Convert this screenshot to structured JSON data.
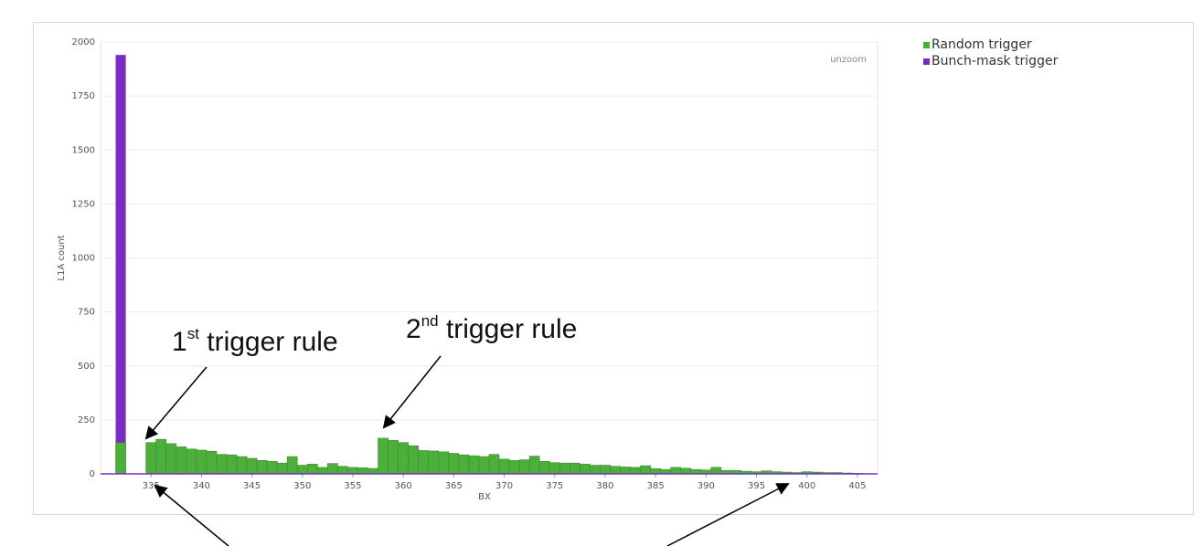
{
  "chart_data": {
    "type": "bar",
    "xlabel": "BX",
    "ylabel": "L1A count",
    "ylim": [
      0,
      2000
    ],
    "xlim": [
      330,
      407
    ],
    "yticks": [
      0,
      250,
      500,
      750,
      1000,
      1250,
      1500,
      1750,
      2000
    ],
    "xticks": [
      335,
      340,
      345,
      350,
      355,
      360,
      365,
      370,
      375,
      380,
      385,
      390,
      395,
      400,
      405
    ],
    "grid": true,
    "legend_position": "outside-top-right",
    "colors": {
      "random": "#4caf3a",
      "bunch": "#7a2bc4"
    },
    "series": [
      {
        "name": "Random trigger",
        "x": [
          332,
          333,
          334,
          335,
          336,
          337,
          338,
          339,
          340,
          341,
          342,
          343,
          344,
          345,
          346,
          347,
          348,
          349,
          350,
          351,
          352,
          353,
          354,
          355,
          356,
          357,
          358,
          359,
          360,
          361,
          362,
          363,
          364,
          365,
          366,
          367,
          368,
          369,
          370,
          371,
          372,
          373,
          374,
          375,
          376,
          377,
          378,
          379,
          380,
          381,
          382,
          383,
          384,
          385,
          386,
          387,
          388,
          389,
          390,
          391,
          392,
          393,
          394,
          395,
          396,
          397,
          398,
          399,
          400,
          401,
          402,
          403,
          404,
          405
        ],
        "values": [
          145,
          0,
          0,
          145,
          160,
          140,
          125,
          115,
          110,
          105,
          90,
          88,
          80,
          72,
          62,
          58,
          50,
          80,
          40,
          45,
          30,
          48,
          35,
          30,
          28,
          25,
          165,
          155,
          145,
          130,
          108,
          106,
          102,
          95,
          88,
          84,
          80,
          90,
          68,
          62,
          65,
          82,
          58,
          52,
          50,
          50,
          45,
          40,
          40,
          35,
          32,
          30,
          38,
          24,
          20,
          30,
          26,
          20,
          18,
          30,
          16,
          16,
          12,
          10,
          14,
          10,
          8,
          6,
          10,
          8,
          6,
          6,
          4,
          3
        ]
      },
      {
        "name": "Bunch-mask trigger",
        "x": [
          332
        ],
        "values": [
          1795
        ]
      }
    ],
    "annotations": [
      {
        "base": "1",
        "sup": "st",
        "rest": " trigger rule"
      },
      {
        "base": "2",
        "sup": "nd",
        "rest": " trigger rule"
      }
    ]
  },
  "unzoom_label": "unzoom"
}
